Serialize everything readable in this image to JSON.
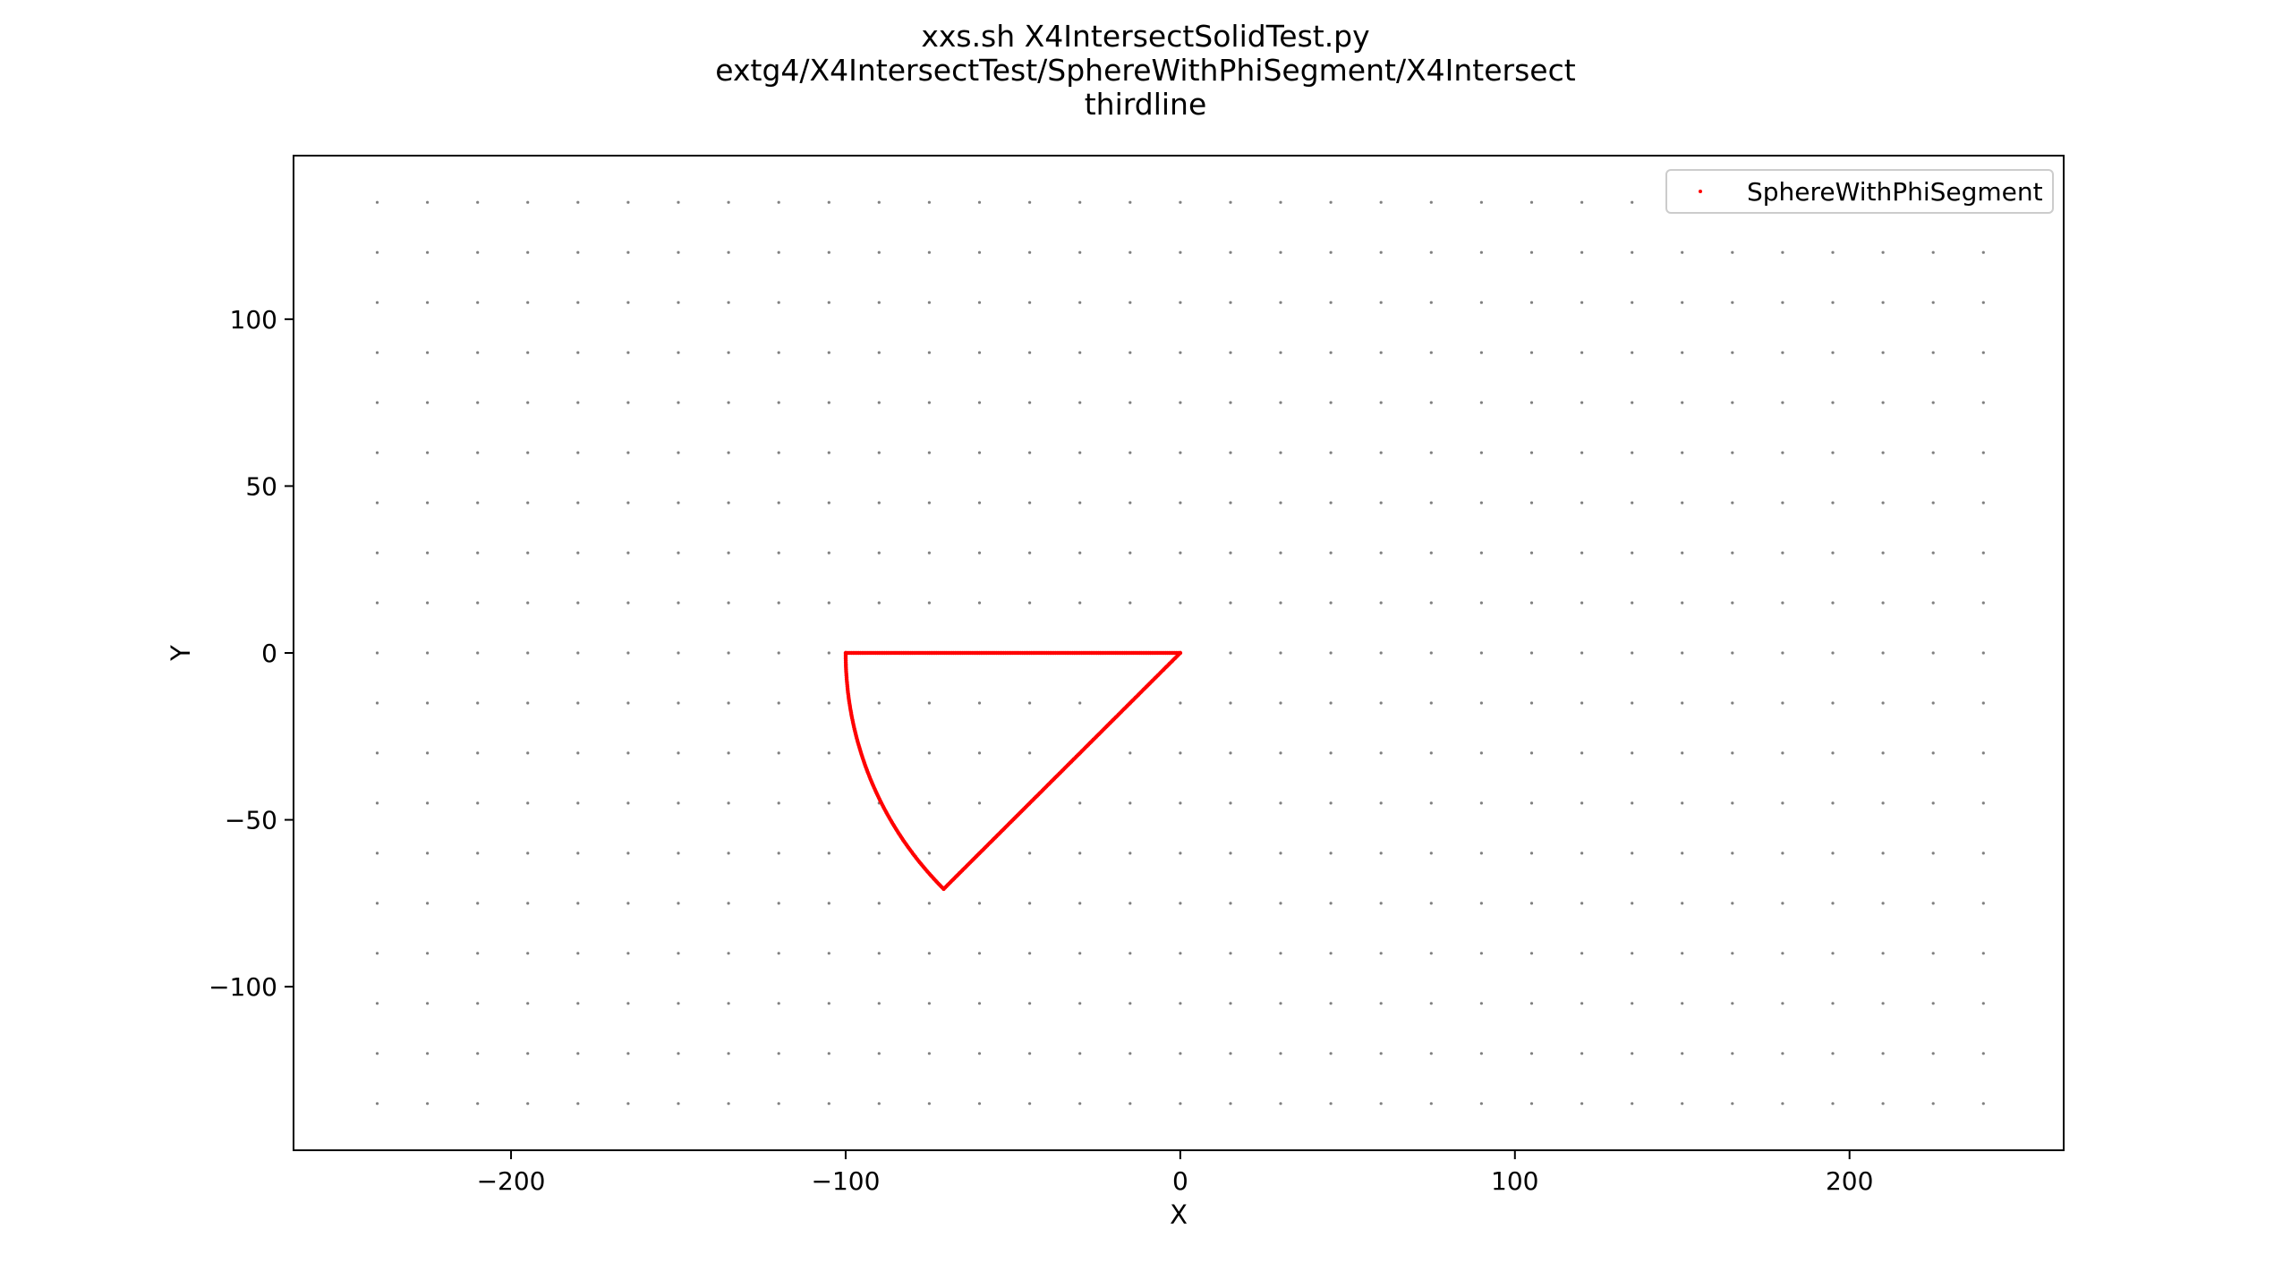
{
  "title_lines": [
    "xxs.sh X4IntersectSolidTest.py",
    "extg4/X4IntersectTest/SphereWithPhiSegment/X4Intersect",
    "thirdline"
  ],
  "chart_data": {
    "type": "scatter",
    "xlabel": "X",
    "ylabel": "Y",
    "xlim": [
      -265,
      264
    ],
    "ylim": [
      -149,
      149
    ],
    "xticks": [
      -200,
      -100,
      0,
      100,
      200
    ],
    "yticks": [
      -100,
      -50,
      0,
      50,
      100
    ],
    "xtick_labels": [
      "−200",
      "−100",
      "0",
      "100",
      "200"
    ],
    "ytick_labels": [
      "−100",
      "−50",
      "0",
      "50",
      "100"
    ],
    "grid": {
      "x_start": -240,
      "x_end": 240,
      "x_step": 15,
      "y_start": -135,
      "y_end": 135,
      "y_step": 15,
      "color": "#808080"
    },
    "legend_placement": "top-right",
    "series": [
      {
        "name": "SphereWithPhiSegment",
        "color": "#ff0000",
        "shape": {
          "segments": [
            {
              "kind": "line",
              "from": [
                -100,
                0
              ],
              "to": [
                0,
                0
              ]
            },
            {
              "kind": "line",
              "from": [
                0,
                0
              ],
              "to": [
                -70.7,
                -70.7
              ]
            },
            {
              "kind": "arc",
              "center": [
                0,
                0
              ],
              "radius": 100,
              "from_deg": 180,
              "to_deg": 225
            }
          ]
        }
      }
    ]
  }
}
